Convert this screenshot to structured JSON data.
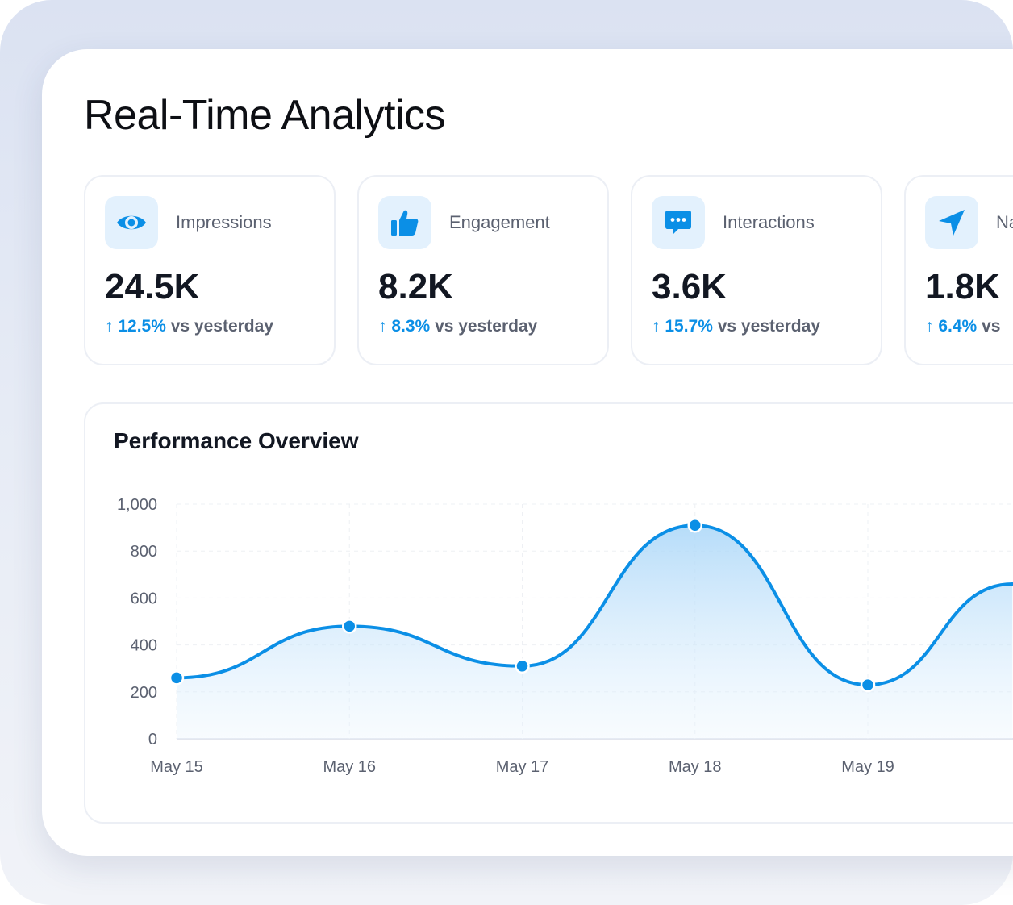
{
  "header": {
    "title": "Real-Time Analytics"
  },
  "stats": [
    {
      "label": "Impressions",
      "value": "24.5K",
      "delta_pct": "12.5%",
      "delta_text": "vs yesterday",
      "icon": "eye-icon"
    },
    {
      "label": "Engagement",
      "value": "8.2K",
      "delta_pct": "8.3%",
      "delta_text": "vs yesterday",
      "icon": "thumbs-up-icon"
    },
    {
      "label": "Interactions",
      "value": "3.6K",
      "delta_pct": "15.7%",
      "delta_text": "vs yesterday",
      "icon": "chat-bubble-icon"
    },
    {
      "label": "Na",
      "value": "1.8K",
      "delta_pct": "6.4%",
      "delta_text": "vs",
      "icon": "navigation-arrow-icon"
    }
  ],
  "colors": {
    "accent": "#0b8fe6",
    "icon_bg": "#e3f1fd",
    "text_dark": "#121722",
    "text_muted": "#5b6170"
  },
  "chart": {
    "title": "Performance Overview",
    "chart_data": {
      "type": "area",
      "categories": [
        "May 15",
        "May 16",
        "May 17",
        "May 18",
        "May 19"
      ],
      "values": [
        260,
        480,
        310,
        910,
        230
      ],
      "trailing_value": 660,
      "ylim": [
        0,
        1000
      ],
      "yticks": [
        0,
        200,
        400,
        600,
        800,
        1000
      ],
      "ytick_labels": [
        "0",
        "200",
        "400",
        "600",
        "800",
        "1,000"
      ],
      "grid": true,
      "legend": "none"
    }
  }
}
